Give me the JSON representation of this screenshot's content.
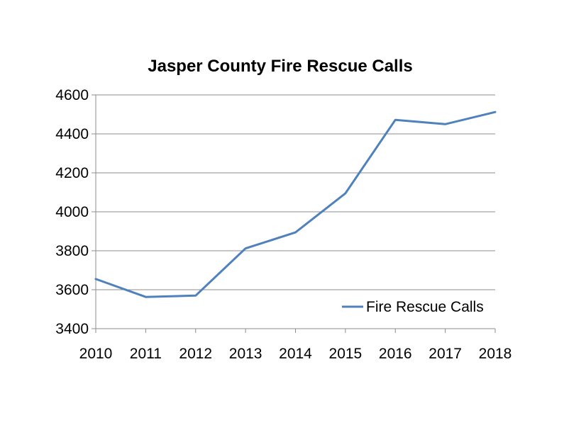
{
  "chart_data": {
    "type": "line",
    "title": "Jasper County Fire Rescue Calls",
    "xlabel": "",
    "ylabel": "",
    "categories": [
      "2010",
      "2011",
      "2012",
      "2013",
      "2014",
      "2015",
      "2016",
      "2017",
      "2018"
    ],
    "series": [
      {
        "name": "Fire Rescue Calls",
        "values": [
          3655,
          3563,
          3570,
          3812,
          3894,
          4095,
          4472,
          4450,
          4512
        ]
      }
    ],
    "ylim": [
      3400,
      4600
    ],
    "yticks": [
      3400,
      3600,
      3800,
      4000,
      4200,
      4400,
      4600
    ],
    "grid": true,
    "legend_position": "bottom-right",
    "colors": {
      "series": "#4f81bd",
      "grid": "#8c8c8c",
      "axis": "#8c8c8c"
    }
  }
}
